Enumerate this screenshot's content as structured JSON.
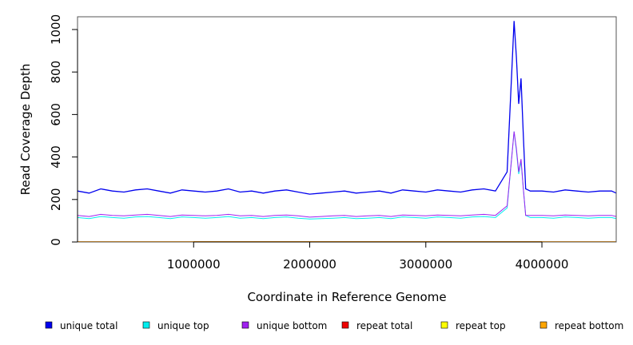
{
  "chart_data": {
    "type": "line",
    "title": "",
    "xlabel": "Coordinate in Reference Genome",
    "ylabel": "Read Coverage Depth",
    "xlim": [
      0,
      4640000
    ],
    "ylim": [
      0,
      1060
    ],
    "x_ticks": [
      1000000,
      2000000,
      3000000,
      4000000
    ],
    "x_tick_labels": [
      "1000000",
      "2000000",
      "3000000",
      "4000000"
    ],
    "y_ticks": [
      0,
      200,
      400,
      600,
      800,
      1000
    ],
    "y_tick_labels": [
      "0",
      "200",
      "400",
      "600",
      "800",
      "1000"
    ],
    "grid": false,
    "legend_position": "bottom",
    "x": [
      0,
      100000,
      200000,
      300000,
      400000,
      500000,
      600000,
      700000,
      800000,
      900000,
      1000000,
      1100000,
      1200000,
      1300000,
      1400000,
      1500000,
      1600000,
      1700000,
      1800000,
      1900000,
      2000000,
      2100000,
      2200000,
      2300000,
      2400000,
      2500000,
      2600000,
      2700000,
      2800000,
      2900000,
      3000000,
      3100000,
      3200000,
      3300000,
      3400000,
      3500000,
      3600000,
      3700000,
      3740000,
      3760000,
      3780000,
      3800000,
      3820000,
      3840000,
      3860000,
      3900000,
      4000000,
      4100000,
      4200000,
      4300000,
      4400000,
      4500000,
      4600000,
      4640000
    ],
    "series": [
      {
        "name": "unique total",
        "color": "#0000ee",
        "values": [
          240,
          230,
          250,
          240,
          235,
          245,
          250,
          240,
          230,
          245,
          240,
          235,
          240,
          250,
          235,
          240,
          230,
          240,
          245,
          235,
          225,
          230,
          235,
          240,
          230,
          235,
          240,
          230,
          245,
          240,
          235,
          245,
          240,
          235,
          245,
          250,
          240,
          330,
          800,
          1040,
          870,
          650,
          770,
          500,
          250,
          240,
          240,
          235,
          245,
          240,
          235,
          240,
          240,
          230
        ]
      },
      {
        "name": "unique top",
        "color": "#00eeee",
        "values": [
          115,
          110,
          120,
          115,
          112,
          118,
          120,
          115,
          110,
          118,
          115,
          112,
          115,
          120,
          112,
          115,
          110,
          115,
          118,
          112,
          108,
          110,
          112,
          115,
          110,
          112,
          115,
          110,
          118,
          115,
          112,
          118,
          115,
          112,
          118,
          120,
          115,
          160,
          400,
          520,
          430,
          320,
          380,
          250,
          125,
          115,
          115,
          112,
          118,
          115,
          112,
          115,
          115,
          110
        ]
      },
      {
        "name": "unique bottom",
        "color": "#a020f0",
        "values": [
          125,
          120,
          130,
          125,
          123,
          127,
          130,
          125,
          120,
          127,
          125,
          123,
          125,
          130,
          123,
          125,
          120,
          125,
          127,
          123,
          117,
          120,
          123,
          125,
          120,
          123,
          125,
          120,
          127,
          125,
          123,
          127,
          125,
          123,
          127,
          130,
          125,
          170,
          400,
          520,
          440,
          330,
          390,
          250,
          125,
          125,
          125,
          123,
          127,
          125,
          123,
          125,
          125,
          120
        ]
      },
      {
        "name": "repeat total",
        "color": "#ee0000",
        "values": [
          2,
          2,
          2,
          2,
          2,
          2,
          2,
          2,
          2,
          2,
          2,
          2,
          2,
          2,
          2,
          2,
          2,
          2,
          2,
          2,
          2,
          2,
          2,
          2,
          2,
          2,
          2,
          2,
          2,
          2,
          2,
          2,
          2,
          2,
          2,
          2,
          2,
          2,
          2,
          2,
          2,
          2,
          2,
          2,
          2,
          2,
          2,
          2,
          2,
          2,
          2,
          2,
          2,
          2
        ]
      },
      {
        "name": "repeat top",
        "color": "#ffff00",
        "values": [
          1,
          1,
          1,
          1,
          1,
          1,
          1,
          1,
          1,
          1,
          1,
          1,
          1,
          1,
          1,
          1,
          1,
          1,
          1,
          1,
          1,
          1,
          1,
          1,
          1,
          1,
          1,
          1,
          1,
          1,
          1,
          1,
          1,
          1,
          1,
          1,
          1,
          1,
          1,
          1,
          1,
          1,
          1,
          1,
          1,
          1,
          1,
          1,
          1,
          1,
          1,
          1,
          1,
          1
        ]
      },
      {
        "name": "repeat bottom",
        "color": "#ffa500",
        "values": [
          1,
          1,
          1,
          1,
          1,
          1,
          1,
          1,
          1,
          1,
          1,
          1,
          1,
          1,
          1,
          1,
          1,
          1,
          1,
          1,
          1,
          1,
          1,
          1,
          1,
          1,
          1,
          1,
          1,
          1,
          1,
          1,
          1,
          1,
          1,
          1,
          1,
          1,
          1,
          1,
          1,
          1,
          1,
          1,
          1,
          1,
          1,
          1,
          1,
          1,
          1,
          1,
          1,
          1
        ]
      }
    ]
  }
}
